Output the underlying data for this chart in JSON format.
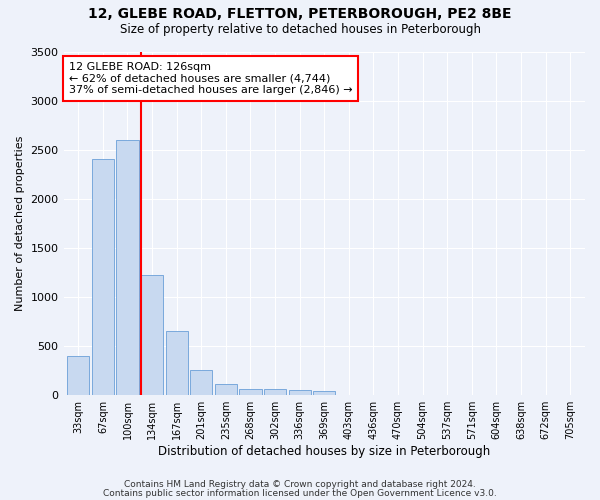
{
  "title1": "12, GLEBE ROAD, FLETTON, PETERBOROUGH, PE2 8BE",
  "title2": "Size of property relative to detached houses in Peterborough",
  "xlabel": "Distribution of detached houses by size in Peterborough",
  "ylabel": "Number of detached properties",
  "footer1": "Contains HM Land Registry data © Crown copyright and database right 2024.",
  "footer2": "Contains public sector information licensed under the Open Government Licence v3.0.",
  "categories": [
    "33sqm",
    "67sqm",
    "100sqm",
    "134sqm",
    "167sqm",
    "201sqm",
    "235sqm",
    "268sqm",
    "302sqm",
    "336sqm",
    "369sqm",
    "403sqm",
    "436sqm",
    "470sqm",
    "504sqm",
    "537sqm",
    "571sqm",
    "604sqm",
    "638sqm",
    "672sqm",
    "705sqm"
  ],
  "values": [
    390,
    2400,
    2600,
    1220,
    650,
    250,
    105,
    62,
    57,
    52,
    42,
    0,
    0,
    0,
    0,
    0,
    0,
    0,
    0,
    0,
    0
  ],
  "bar_color": "#c8d9f0",
  "bar_edge_color": "#6a9fd8",
  "red_line_index": 3,
  "annotation_line1": "12 GLEBE ROAD: 126sqm",
  "annotation_line2": "← 62% of detached houses are smaller (4,744)",
  "annotation_line3": "37% of semi-detached houses are larger (2,846) →",
  "annotation_box_color": "white",
  "annotation_box_edge": "red",
  "ylim": [
    0,
    3500
  ],
  "yticks": [
    0,
    500,
    1000,
    1500,
    2000,
    2500,
    3000,
    3500
  ],
  "background_color": "#eef2fa",
  "plot_bg_color": "#eef2fa",
  "grid_color": "white"
}
